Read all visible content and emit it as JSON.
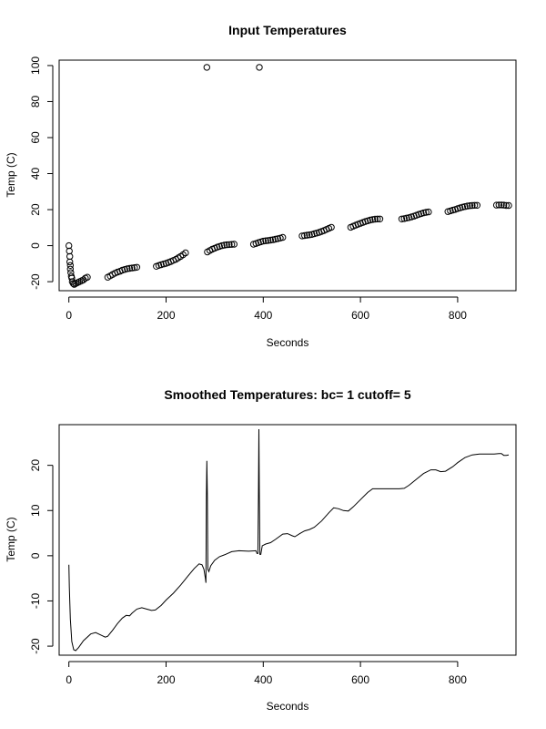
{
  "chart_data": [
    {
      "type": "scatter",
      "title": "Input Temperatures",
      "xlabel": "Seconds",
      "ylabel": "Temp (C)",
      "xlim": [
        -20,
        920
      ],
      "ylim": [
        -25,
        103
      ],
      "xticks": [
        0,
        200,
        400,
        600,
        800
      ],
      "yticks": [
        -20,
        0,
        20,
        40,
        60,
        80,
        100
      ],
      "grid": false,
      "points": [
        [
          0,
          0
        ],
        [
          1,
          -3
        ],
        [
          2,
          -6
        ],
        [
          2,
          -9
        ],
        [
          3,
          -11
        ],
        [
          3,
          -13
        ],
        [
          4,
          -15
        ],
        [
          5,
          -17
        ],
        [
          6,
          -18
        ],
        [
          7,
          -20
        ],
        [
          9,
          -21
        ],
        [
          11,
          -21.5
        ],
        [
          14,
          -21
        ],
        [
          18,
          -20.5
        ],
        [
          22,
          -20
        ],
        [
          26,
          -19.5
        ],
        [
          30,
          -19
        ],
        [
          34,
          -18
        ],
        [
          38,
          -17.5
        ],
        [
          80,
          -17.5
        ],
        [
          85,
          -16.8
        ],
        [
          90,
          -16
        ],
        [
          95,
          -15.3
        ],
        [
          100,
          -14.7
        ],
        [
          105,
          -14.2
        ],
        [
          110,
          -13.6
        ],
        [
          115,
          -13.2
        ],
        [
          120,
          -12.8
        ],
        [
          125,
          -12.6
        ],
        [
          130,
          -12.4
        ],
        [
          135,
          -12.2
        ],
        [
          140,
          -12
        ],
        [
          180,
          -11.5
        ],
        [
          185,
          -11
        ],
        [
          190,
          -10.6
        ],
        [
          195,
          -10.2
        ],
        [
          200,
          -9.8
        ],
        [
          205,
          -9.3
        ],
        [
          210,
          -8.8
        ],
        [
          215,
          -8.2
        ],
        [
          220,
          -7.6
        ],
        [
          225,
          -6.8
        ],
        [
          230,
          -6
        ],
        [
          235,
          -5
        ],
        [
          240,
          -4
        ],
        [
          285,
          -3.5
        ],
        [
          290,
          -2.7
        ],
        [
          295,
          -2
        ],
        [
          300,
          -1.4
        ],
        [
          305,
          -0.8
        ],
        [
          310,
          -0.4
        ],
        [
          315,
          0
        ],
        [
          320,
          0.3
        ],
        [
          325,
          0.5
        ],
        [
          330,
          0.6
        ],
        [
          335,
          0.7
        ],
        [
          340,
          0.8
        ],
        [
          380,
          0.8
        ],
        [
          385,
          1.2
        ],
        [
          390,
          1.7
        ],
        [
          395,
          2.1
        ],
        [
          400,
          2.5
        ],
        [
          405,
          2.7
        ],
        [
          410,
          2.9
        ],
        [
          415,
          3.1
        ],
        [
          420,
          3.3
        ],
        [
          425,
          3.6
        ],
        [
          430,
          3.9
        ],
        [
          435,
          4.2
        ],
        [
          440,
          4.6
        ],
        [
          480,
          5.4
        ],
        [
          485,
          5.6
        ],
        [
          490,
          5.8
        ],
        [
          495,
          6
        ],
        [
          500,
          6.2
        ],
        [
          505,
          6.6
        ],
        [
          510,
          7
        ],
        [
          515,
          7.4
        ],
        [
          520,
          7.9
        ],
        [
          525,
          8.4
        ],
        [
          530,
          9
        ],
        [
          535,
          9.6
        ],
        [
          540,
          10.2
        ],
        [
          580,
          10.2
        ],
        [
          585,
          10.8
        ],
        [
          590,
          11.4
        ],
        [
          595,
          11.9
        ],
        [
          600,
          12.4
        ],
        [
          605,
          12.9
        ],
        [
          610,
          13.4
        ],
        [
          615,
          13.8
        ],
        [
          620,
          14.2
        ],
        [
          625,
          14.5
        ],
        [
          630,
          14.7
        ],
        [
          635,
          14.8
        ],
        [
          640,
          14.8
        ],
        [
          685,
          14.8
        ],
        [
          690,
          15
        ],
        [
          695,
          15.3
        ],
        [
          700,
          15.6
        ],
        [
          705,
          16
        ],
        [
          710,
          16.4
        ],
        [
          715,
          16.9
        ],
        [
          720,
          17.4
        ],
        [
          725,
          17.8
        ],
        [
          730,
          18.2
        ],
        [
          735,
          18.5
        ],
        [
          740,
          18.7
        ],
        [
          780,
          18.9
        ],
        [
          785,
          19.3
        ],
        [
          790,
          19.7
        ],
        [
          795,
          20.1
        ],
        [
          800,
          20.6
        ],
        [
          805,
          21
        ],
        [
          810,
          21.4
        ],
        [
          815,
          21.7
        ],
        [
          820,
          22
        ],
        [
          825,
          22.2
        ],
        [
          830,
          22.3
        ],
        [
          835,
          22.4
        ],
        [
          840,
          22.4
        ],
        [
          880,
          22.5
        ],
        [
          885,
          22.6
        ],
        [
          890,
          22.6
        ],
        [
          895,
          22.5
        ],
        [
          900,
          22.3
        ],
        [
          905,
          22.3
        ],
        [
          284,
          99
        ],
        [
          392,
          99
        ]
      ]
    },
    {
      "type": "line",
      "title": "Smoothed Temperatures: bc= 1 cutoff= 5",
      "xlabel": "Seconds",
      "ylabel": "Temp (C)",
      "xlim": [
        -20,
        920
      ],
      "ylim": [
        -22,
        29
      ],
      "xticks": [
        0,
        200,
        400,
        600,
        800
      ],
      "yticks": [
        -20,
        -10,
        0,
        10,
        20
      ],
      "grid": false,
      "points": [
        [
          0,
          -2
        ],
        [
          1,
          -7
        ],
        [
          3,
          -14
        ],
        [
          6,
          -19
        ],
        [
          10,
          -20.8
        ],
        [
          14,
          -21
        ],
        [
          20,
          -20.3
        ],
        [
          30,
          -18.8
        ],
        [
          45,
          -17.3
        ],
        [
          55,
          -17
        ],
        [
          65,
          -17.5
        ],
        [
          75,
          -18
        ],
        [
          80,
          -17.8
        ],
        [
          90,
          -16.5
        ],
        [
          100,
          -15
        ],
        [
          110,
          -13.8
        ],
        [
          118,
          -13.2
        ],
        [
          125,
          -13.3
        ],
        [
          130,
          -12.7
        ],
        [
          140,
          -11.8
        ],
        [
          150,
          -11.5
        ],
        [
          160,
          -11.8
        ],
        [
          170,
          -12.1
        ],
        [
          178,
          -12
        ],
        [
          190,
          -11
        ],
        [
          200,
          -9.8
        ],
        [
          215,
          -8.3
        ],
        [
          230,
          -6.5
        ],
        [
          245,
          -4.5
        ],
        [
          258,
          -2.8
        ],
        [
          268,
          -1.8
        ],
        [
          274,
          -2
        ],
        [
          278,
          -3
        ],
        [
          281,
          -5
        ],
        [
          282,
          -6
        ],
        [
          283,
          13
        ],
        [
          284,
          21
        ],
        [
          285,
          13
        ],
        [
          286,
          -3
        ],
        [
          288,
          -3.5
        ],
        [
          292,
          -2.2
        ],
        [
          300,
          -1
        ],
        [
          310,
          -0.2
        ],
        [
          320,
          0.2
        ],
        [
          335,
          0.9
        ],
        [
          350,
          1.1
        ],
        [
          370,
          1
        ],
        [
          385,
          1.1
        ],
        [
          387,
          0.5
        ],
        [
          389,
          0.5
        ],
        [
          390,
          13
        ],
        [
          391,
          28
        ],
        [
          392,
          13
        ],
        [
          393,
          0.3
        ],
        [
          395,
          0.3
        ],
        [
          398,
          2.2
        ],
        [
          405,
          2.6
        ],
        [
          415,
          2.9
        ],
        [
          425,
          3.6
        ],
        [
          440,
          4.8
        ],
        [
          450,
          4.9
        ],
        [
          460,
          4.4
        ],
        [
          465,
          4.2
        ],
        [
          475,
          4.9
        ],
        [
          485,
          5.5
        ],
        [
          495,
          5.8
        ],
        [
          505,
          6.3
        ],
        [
          520,
          7.7
        ],
        [
          535,
          9.5
        ],
        [
          545,
          10.6
        ],
        [
          555,
          10.4
        ],
        [
          565,
          10
        ],
        [
          575,
          9.9
        ],
        [
          585,
          10.8
        ],
        [
          600,
          12.4
        ],
        [
          615,
          14
        ],
        [
          625,
          14.8
        ],
        [
          640,
          14.8
        ],
        [
          660,
          14.8
        ],
        [
          680,
          14.8
        ],
        [
          690,
          14.9
        ],
        [
          700,
          15.6
        ],
        [
          715,
          16.9
        ],
        [
          730,
          18.2
        ],
        [
          745,
          19
        ],
        [
          755,
          19
        ],
        [
          765,
          18.6
        ],
        [
          775,
          18.7
        ],
        [
          790,
          19.7
        ],
        [
          800,
          20.6
        ],
        [
          815,
          21.7
        ],
        [
          830,
          22.3
        ],
        [
          845,
          22.5
        ],
        [
          860,
          22.5
        ],
        [
          875,
          22.5
        ],
        [
          885,
          22.6
        ],
        [
          890,
          22.6
        ],
        [
          895,
          22.2
        ],
        [
          900,
          22.2
        ],
        [
          905,
          22.3
        ]
      ]
    }
  ]
}
